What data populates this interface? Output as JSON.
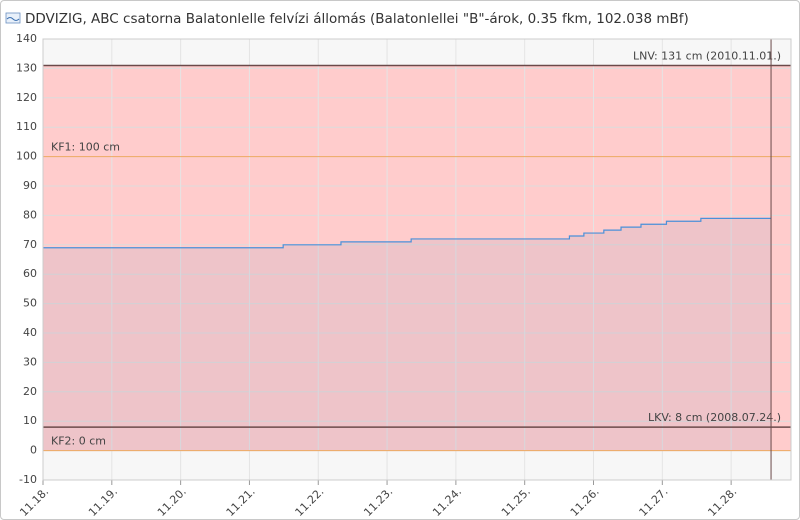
{
  "chart_data": {
    "type": "area",
    "title": "DDVIZIG, ABC csatorna Balatonlelle felvízi állomás (Balatonlellei \"B\"-árok, 0.35 fkm, 102.038 mBf)",
    "series": [
      {
        "color": "#4a90d9",
        "step": "after",
        "x": [
          0,
          3.49,
          4.33,
          5.35,
          7.65,
          7.86,
          8.15,
          8.4,
          8.69,
          9.06,
          9.56,
          10.58
        ],
        "values": [
          69,
          70,
          71,
          72,
          73,
          74,
          75,
          76,
          77,
          78,
          79,
          79
        ]
      }
    ],
    "xlim": [
      0,
      10.87
    ],
    "xticks": [
      {
        "value": 0,
        "label": "11.18."
      },
      {
        "value": 1,
        "label": "11.19."
      },
      {
        "value": 2,
        "label": "11.20."
      },
      {
        "value": 3,
        "label": "11.21."
      },
      {
        "value": 4,
        "label": "11.22."
      },
      {
        "value": 5,
        "label": "11.23."
      },
      {
        "value": 6,
        "label": "11.24."
      },
      {
        "value": 7,
        "label": "11.25."
      },
      {
        "value": 8,
        "label": "11.26."
      },
      {
        "value": 9,
        "label": "11.27."
      },
      {
        "value": 10,
        "label": "11.28."
      }
    ],
    "ylim": [
      -10,
      140
    ],
    "yticks": [
      -10,
      0,
      10,
      20,
      30,
      40,
      50,
      60,
      70,
      80,
      90,
      100,
      110,
      120,
      130,
      140
    ],
    "grid": true,
    "band": {
      "from": 0,
      "to": 131,
      "color": "#ffcccc"
    },
    "reference_lines": [
      {
        "value": 131,
        "label": "LNV: 131 cm (2010.11.01.)",
        "color": "#6b4a4a",
        "align": "right"
      },
      {
        "value": 100,
        "label": "KF1: 100 cm",
        "color": "#f0a860",
        "align": "left"
      },
      {
        "value": 8,
        "label": "LKV: 8 cm (2008.07.24.)",
        "color": "#6b4a4a",
        "align": "right"
      },
      {
        "value": 0,
        "label": "KF2: 0 cm",
        "color": "#f0a860",
        "align": "left"
      }
    ],
    "now_line": 10.58
  }
}
